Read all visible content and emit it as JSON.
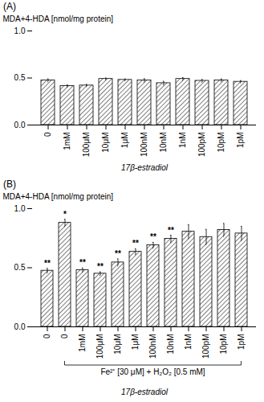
{
  "chart_data": [
    {
      "type": "bar",
      "title": "(A)",
      "categories": [
        "0",
        "1mM",
        "100μM",
        "10μM",
        "1μM",
        "100nM",
        "10nM",
        "1nM",
        "100pM",
        "10pM",
        "1pM"
      ],
      "values": [
        0.475,
        0.415,
        0.42,
        0.49,
        0.48,
        0.475,
        0.445,
        0.49,
        0.47,
        0.475,
        0.46
      ],
      "errors": [
        0.015,
        0.012,
        0.012,
        0.01,
        0.01,
        0.018,
        0.02,
        0.015,
        0.015,
        0.015,
        0.012
      ],
      "ylabel": "MDA+4-HDA [nmol/mg protein]",
      "xlabel": "17β-estradiol",
      "color": "white",
      "ylim": [
        0.0,
        1.0
      ],
      "yticks": [
        {
          "value": 0.0,
          "label": "0.0"
        },
        0.5,
        {
          "value": 1.0,
          "label": "1.0"
        }
      ]
    },
    {
      "type": "bar",
      "title": "(B)",
      "categories": [
        "0",
        "0",
        "1mM",
        "100μM",
        "10μM",
        "1μM",
        "100nM",
        "10nM",
        "1nM",
        "100pM",
        "10pM",
        "1pM"
      ],
      "values": [
        0.475,
        0.88,
        0.48,
        0.45,
        0.545,
        0.635,
        0.69,
        0.745,
        0.805,
        0.76,
        0.82,
        0.79
      ],
      "errors": [
        0.02,
        0.03,
        0.018,
        0.015,
        0.03,
        0.025,
        0.025,
        0.03,
        0.06,
        0.065,
        0.055,
        0.06
      ],
      "stars": [
        "**",
        "*",
        "**",
        "**",
        "**",
        "**",
        "**",
        "**",
        null,
        null,
        null,
        null
      ],
      "ylabel": "MDA+4-HDA [nmol/mg protein]",
      "xlabel": "17β-estradiol",
      "annotations": [
        {
          "text": "Fe²⁺ [30 μM] + H₂O₂ [0.5 mM]",
          "bracket": [
            1,
            11
          ]
        }
      ],
      "color": "white",
      "ylim": [
        0.0,
        1.0
      ],
      "yticks": [
        {
          "value": 0.0,
          "label": "0.0"
        },
        0.5,
        {
          "value": 1.0,
          "label": "1.0"
        }
      ]
    }
  ]
}
